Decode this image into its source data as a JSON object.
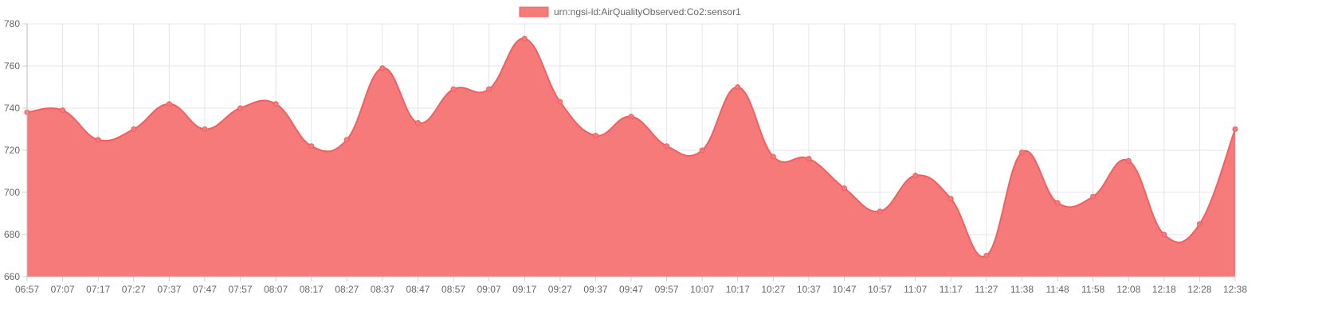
{
  "chart_data": {
    "type": "area",
    "x": [
      "06:57",
      "07:07",
      "07:17",
      "07:27",
      "07:37",
      "07:47",
      "07:57",
      "08:07",
      "08:17",
      "08:27",
      "08:37",
      "08:47",
      "08:57",
      "09:07",
      "09:17",
      "09:27",
      "09:37",
      "09:47",
      "09:57",
      "10:07",
      "10:17",
      "10:27",
      "10:37",
      "10:47",
      "10:57",
      "11:07",
      "11:17",
      "11:27",
      "11:38",
      "11:48",
      "11:58",
      "12:08",
      "12:18",
      "12:28",
      "12:38"
    ],
    "series": [
      {
        "name": "urn:ngsi-ld:AirQualityObserved:Co2:sensor1",
        "values": [
          738,
          739,
          725,
          730,
          742,
          730,
          740,
          742,
          722,
          725,
          759,
          733,
          749,
          749,
          773,
          743,
          727,
          736,
          722,
          720,
          750,
          717,
          716,
          702,
          691,
          708,
          697,
          670,
          719,
          695,
          698,
          715,
          680,
          685,
          730
        ],
        "color": "#f67a7a",
        "line_color": "#f25f5f"
      }
    ],
    "ylim": [
      660,
      780
    ],
    "yticks": [
      660,
      680,
      700,
      720,
      740,
      760,
      780
    ],
    "grid": true,
    "legend": "top-center",
    "title": "",
    "xlabel": "",
    "ylabel": ""
  }
}
